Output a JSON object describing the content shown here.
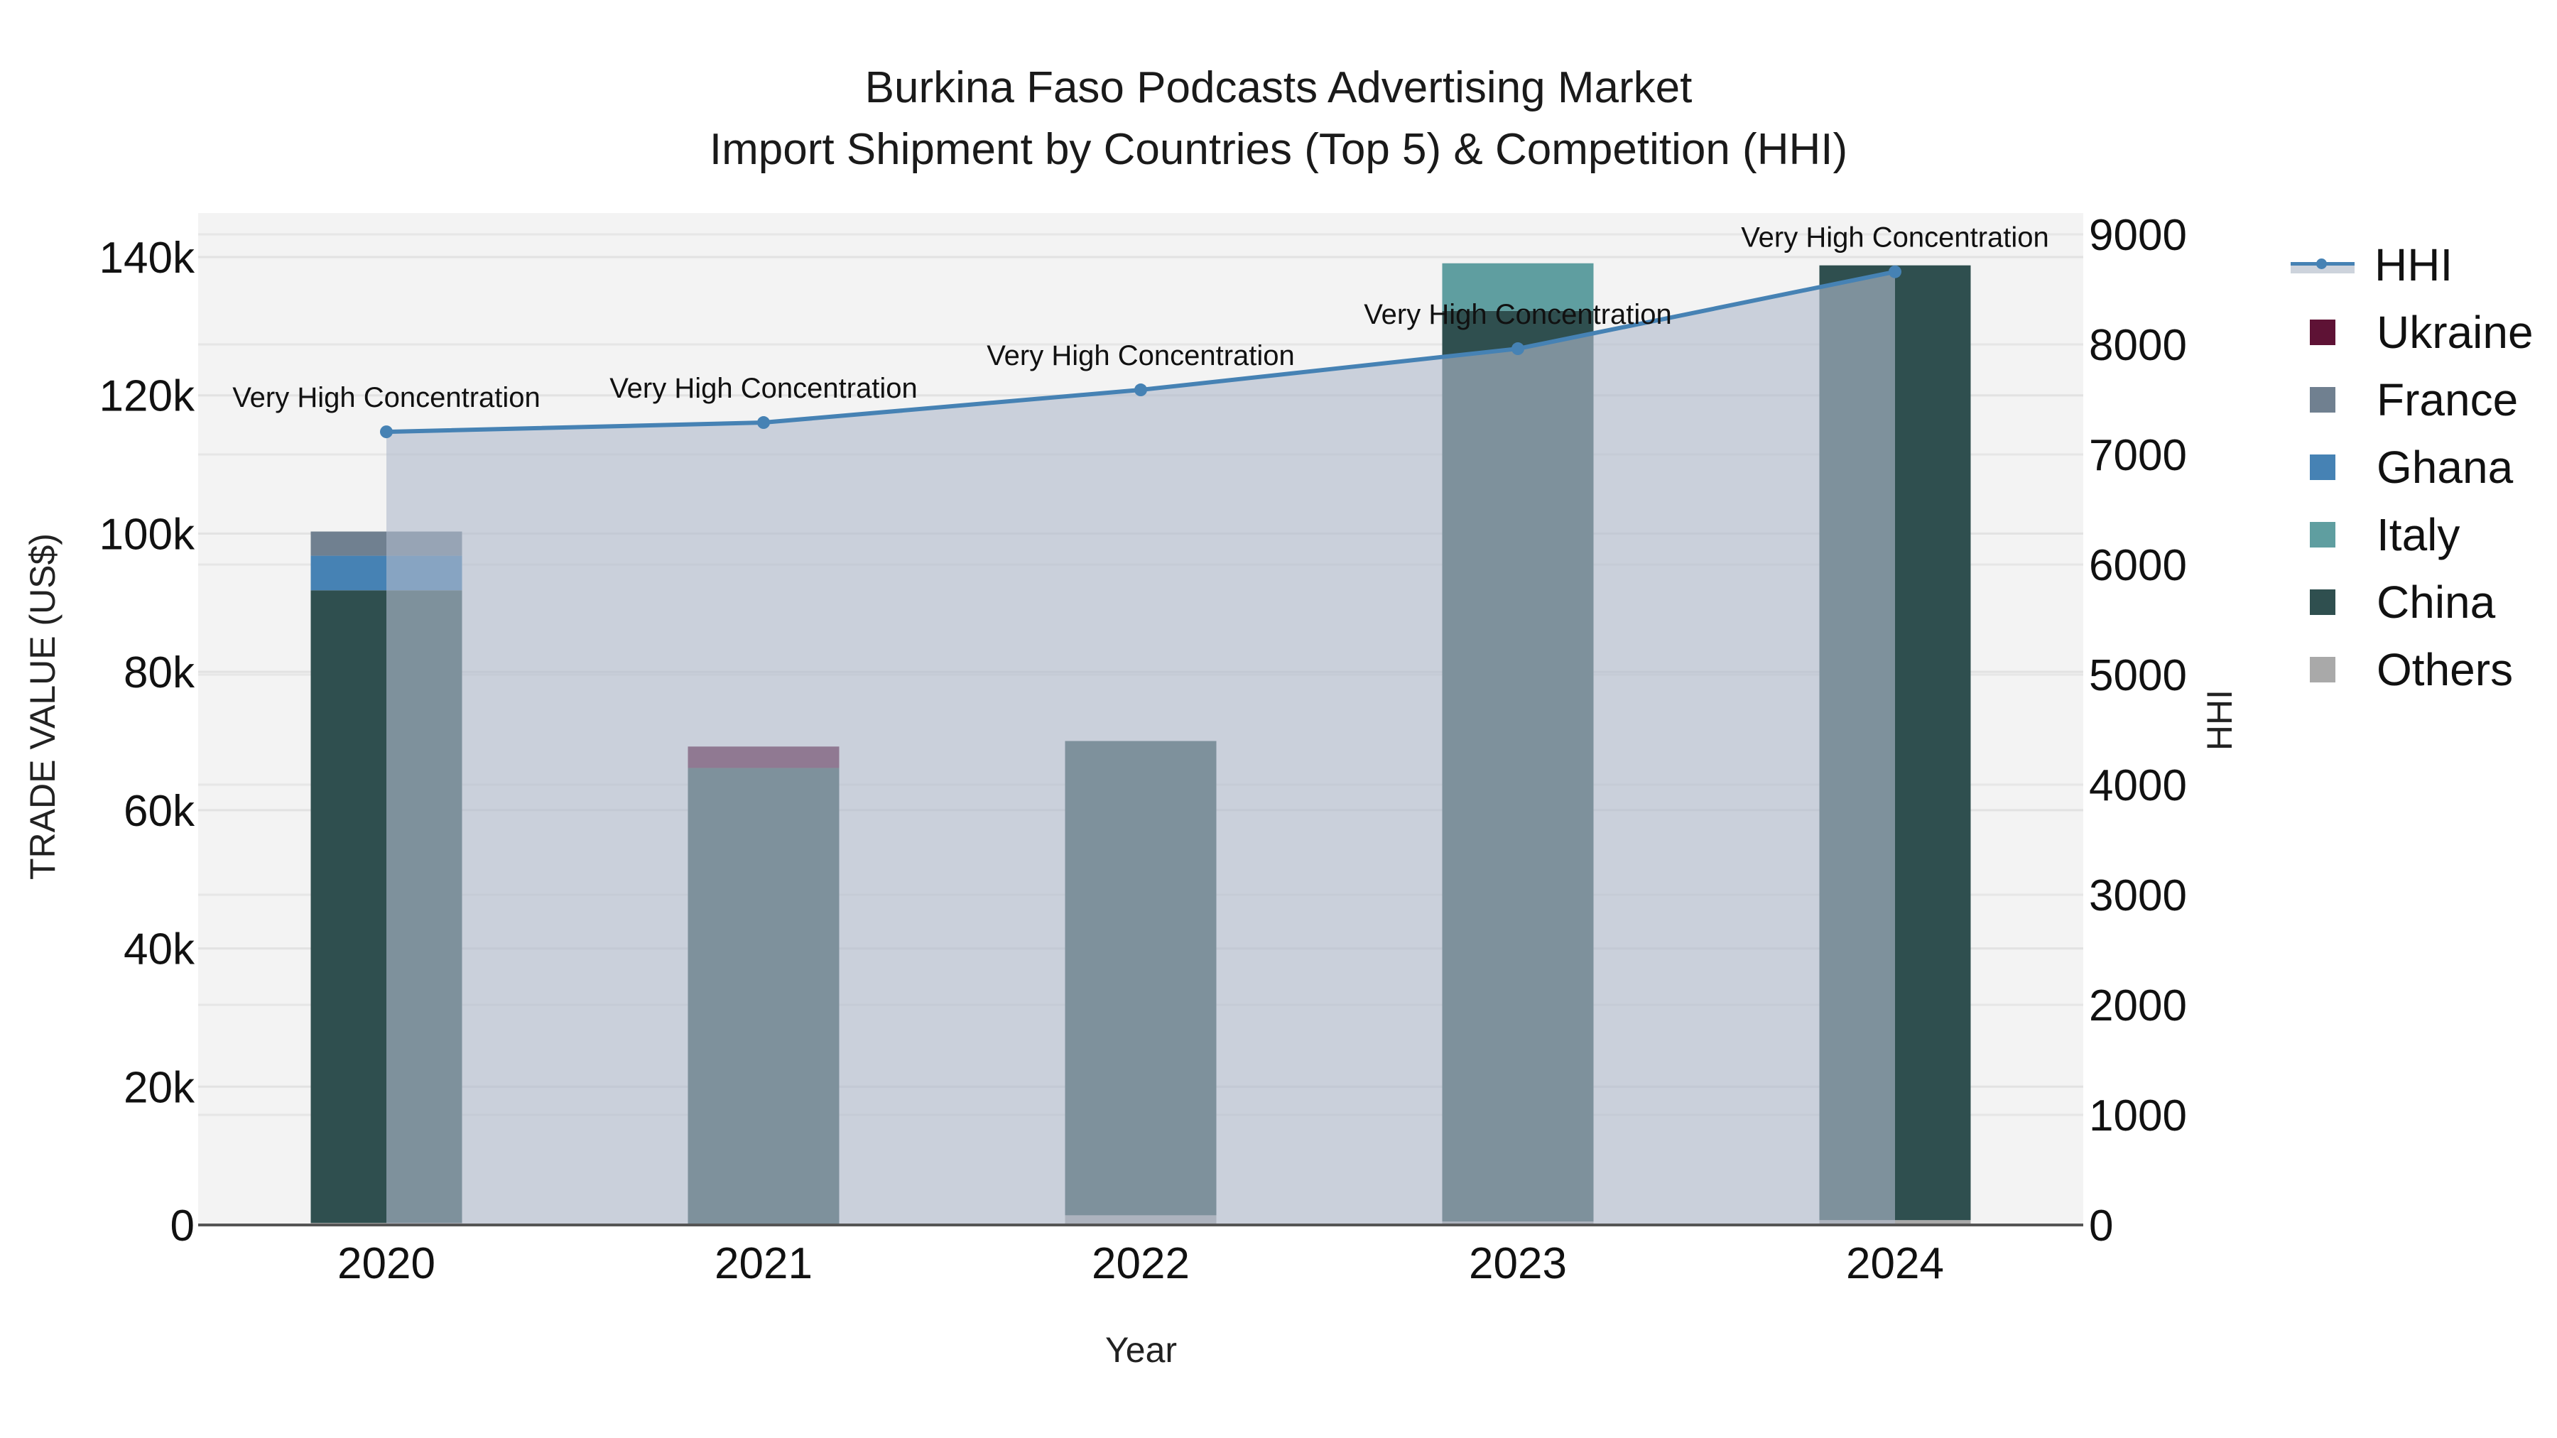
{
  "title": {
    "line1": "Burkina Faso Podcasts Advertising Market",
    "line2": "Import Shipment by Countries (Top 5) & Competition (HHI)"
  },
  "axes": {
    "x_title": "Year",
    "y_left_title": "TRADE VALUE (US$)",
    "y_right_title": "HHI"
  },
  "legend": {
    "items": [
      {
        "label": "HHI",
        "kind": "line",
        "color": "#4682B4"
      },
      {
        "label": "Ukraine",
        "kind": "bar",
        "color": "#5E1235"
      },
      {
        "label": "France",
        "kind": "bar",
        "color": "#708090"
      },
      {
        "label": "Ghana",
        "kind": "bar",
        "color": "#4682B4"
      },
      {
        "label": "Italy",
        "kind": "bar",
        "color": "#5F9EA0"
      },
      {
        "label": "China",
        "kind": "bar",
        "color": "#2F4F4F"
      },
      {
        "label": "Others",
        "kind": "bar",
        "color": "#A9A9A9"
      }
    ]
  },
  "chart_data": {
    "type": "bar",
    "title": "Burkina Faso Podcasts Advertising Market — Import Shipment by Countries (Top 5) & Competition (HHI)",
    "xlabel": "Year",
    "ylabel": "TRADE VALUE (US$)",
    "y2label": "HHI",
    "categories": [
      "2020",
      "2021",
      "2022",
      "2023",
      "2024"
    ],
    "stacking": "stacked",
    "series": [
      {
        "name": "Others",
        "color": "#A9A9A9",
        "values": [
          300,
          0,
          1400,
          500,
          700
        ]
      },
      {
        "name": "China",
        "color": "#2F4F4F",
        "values": [
          91500,
          66100,
          68600,
          131700,
          138100
        ]
      },
      {
        "name": "Italy",
        "color": "#5F9EA0",
        "values": [
          0,
          0,
          0,
          6900,
          0
        ]
      },
      {
        "name": "Ghana",
        "color": "#4682B4",
        "values": [
          5000,
          0,
          0,
          0,
          0
        ]
      },
      {
        "name": "France",
        "color": "#708090",
        "values": [
          3500,
          0,
          0,
          0,
          0
        ]
      },
      {
        "name": "Ukraine",
        "color": "#5E1235",
        "values": [
          0,
          3100,
          0,
          0,
          0
        ]
      }
    ],
    "line_series": {
      "name": "HHI",
      "axis": "right",
      "color": "#4682B4",
      "fill": "tozeroy",
      "values": [
        7206,
        7290,
        7587,
        7961,
        8660
      ],
      "annotations": [
        "Very High Concentration",
        "Very High Concentration",
        "Very High Concentration",
        "Very High Concentration",
        "Very High Concentration"
      ]
    },
    "ylim": [
      0,
      146000
    ],
    "y2lim": [
      0,
      9200
    ],
    "yticks": [
      "0",
      "20k",
      "40k",
      "60k",
      "80k",
      "100k",
      "120k",
      "140k"
    ],
    "yticks_values": [
      0,
      20000,
      40000,
      60000,
      80000,
      100000,
      120000,
      140000
    ],
    "y2ticks": [
      "0",
      "1000",
      "2000",
      "3000",
      "4000",
      "5000",
      "6000",
      "7000",
      "8000",
      "9000"
    ],
    "y2ticks_values": [
      0,
      1000,
      2000,
      3000,
      4000,
      5000,
      6000,
      7000,
      8000,
      9000
    ],
    "grid": true,
    "legend_position": "right"
  }
}
